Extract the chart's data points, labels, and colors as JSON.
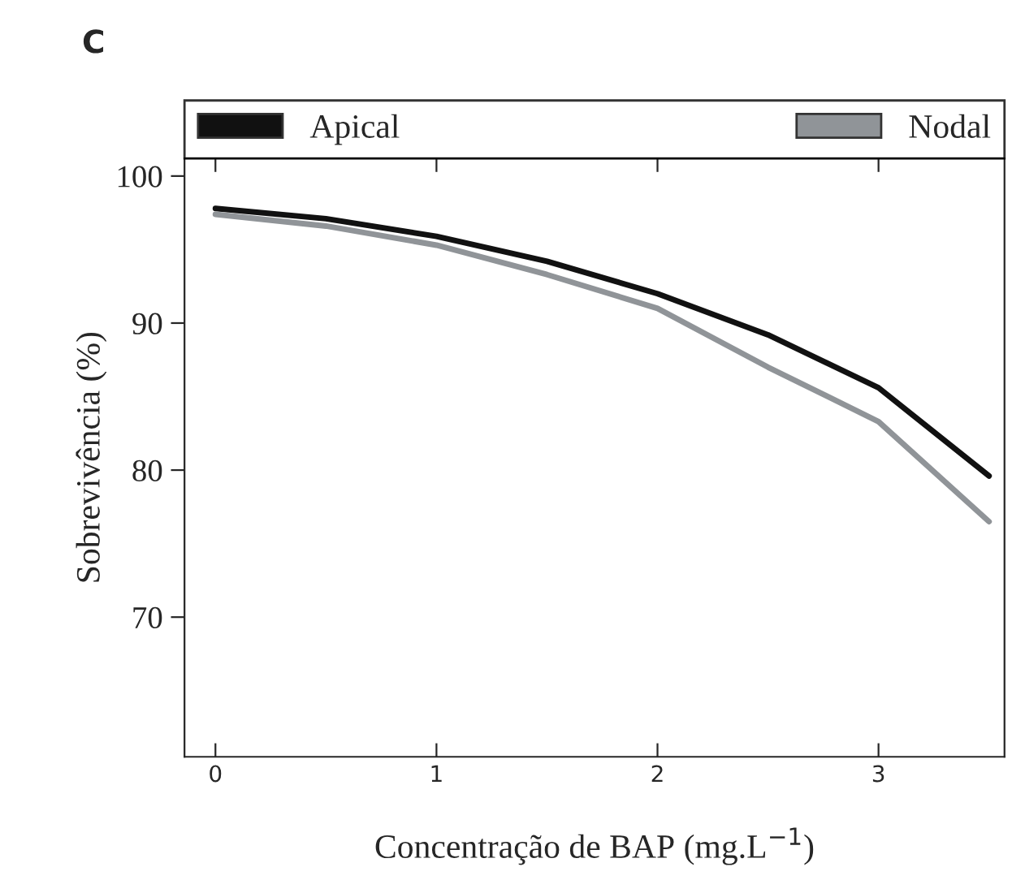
{
  "chart_data": {
    "type": "line",
    "xlabel": "Concentração de BAP (mg.L$^{−1}$)",
    "ylabel": "Sobrevivência (%)",
    "annotations": [
      "C"
    ],
    "x": [
      0,
      0.5,
      1,
      1.5,
      2,
      2.5,
      3,
      3.5
    ],
    "series": [
      {
        "name": "Apical",
        "color": "#111111",
        "values": [
          97.8,
          97.1,
          95.9,
          94.2,
          92.0,
          89.2,
          85.6,
          79.6
        ]
      },
      {
        "name": "Nodal",
        "color": "#909498",
        "values": [
          97.4,
          96.6,
          95.3,
          93.3,
          91.0,
          87.0,
          83.3,
          76.5
        ]
      }
    ],
    "xlim": [
      -0.14,
      3.57
    ],
    "ylim": [
      60.5,
      101.2
    ],
    "xticks": [
      0,
      1,
      2,
      3
    ],
    "yticks": [
      70,
      80,
      90,
      100
    ],
    "grid": false,
    "legend": "top",
    "marker": "none",
    "line_style": "solid"
  }
}
